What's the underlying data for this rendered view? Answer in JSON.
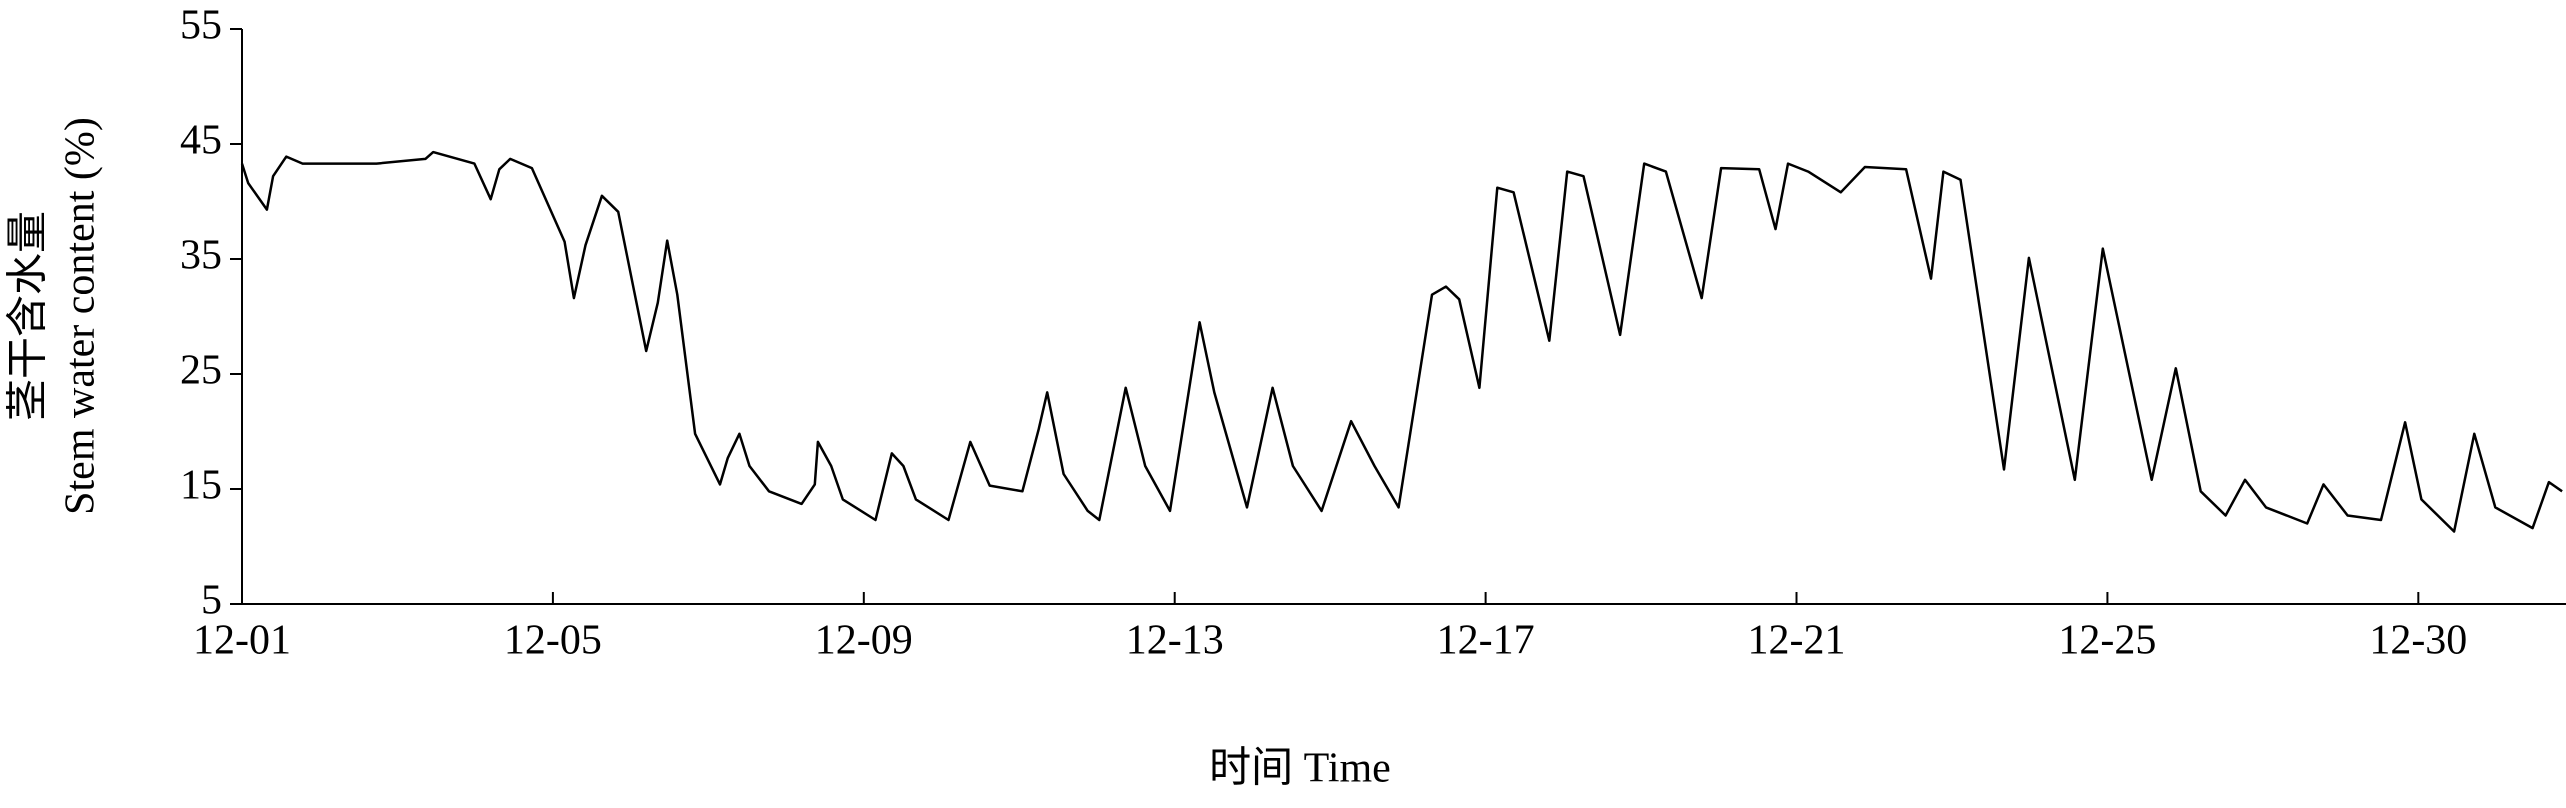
{
  "chart_data": {
    "type": "line",
    "ylabel": [
      "茎干含水量",
      "Stem water content (%)"
    ],
    "xlabel": "时间  Time",
    "xlim": [
      0,
      29.9
    ],
    "xticks": [
      {
        "value": 0,
        "label": "12-01"
      },
      {
        "value": 4,
        "label": "12-05"
      },
      {
        "value": 8,
        "label": "12-09"
      },
      {
        "value": 12,
        "label": "12-13"
      },
      {
        "value": 16,
        "label": "12-17"
      },
      {
        "value": 20,
        "label": "12-21"
      },
      {
        "value": 24,
        "label": "12-25"
      },
      {
        "value": 28,
        "label": "12-30"
      }
    ],
    "ylim": [
      5,
      55
    ],
    "yticks": [
      5,
      15,
      25,
      35,
      45,
      55
    ],
    "series": [
      {
        "color": "#000000",
        "x": [
          0,
          0.08,
          0.32,
          0.4,
          0.57,
          0.78,
          1.73,
          2.36,
          2.46,
          2.99,
          3.2,
          3.31,
          3.45,
          3.73,
          4.15,
          4.27,
          4.42,
          4.63,
          4.84,
          5.2,
          5.35,
          5.47,
          5.6,
          5.83,
          6.15,
          6.25,
          6.4,
          6.53,
          6.78,
          7.2,
          7.37,
          7.41,
          7.58,
          7.73,
          8.15,
          8.36,
          8.51,
          8.67,
          9.09,
          9.37,
          9.62,
          10.04,
          10.25,
          10.36,
          10.57,
          10.88,
          11.03,
          11.37,
          11.62,
          11.94,
          12.32,
          12.51,
          12.93,
          13.26,
          13.52,
          13.89,
          14.27,
          14.57,
          14.88,
          15.31,
          15.49,
          15.66,
          15.92,
          16.15,
          16.36,
          16.82,
          17.05,
          17.26,
          17.73,
          18.04,
          18.32,
          18.78,
          19.03,
          19.52,
          19.73,
          19.89,
          20.15,
          20.57,
          20.88,
          21.41,
          21.73,
          21.89,
          22.11,
          22.67,
          22.99,
          23.58,
          23.94,
          24.57,
          24.88,
          25.2,
          25.52,
          25.77,
          26.04,
          26.57,
          26.78,
          27.09,
          27.52,
          27.83,
          28.04,
          28.46,
          28.72,
          28.99,
          29.47,
          29.68,
          29.85
        ],
        "values": [
          43.3,
          41.6,
          39.3,
          42.2,
          43.9,
          43.3,
          43.3,
          43.7,
          44.3,
          43.3,
          40.2,
          42.8,
          43.7,
          42.9,
          36.5,
          31.6,
          36.2,
          40.5,
          39.1,
          27.0,
          31.2,
          36.6,
          31.9,
          19.8,
          15.4,
          17.7,
          19.8,
          17.0,
          14.8,
          13.7,
          15.4,
          19.1,
          17.0,
          14.1,
          12.3,
          18.1,
          17.0,
          14.1,
          12.3,
          19.1,
          15.3,
          14.8,
          20.2,
          23.4,
          16.3,
          13.1,
          12.3,
          23.8,
          17.0,
          13.1,
          29.5,
          23.4,
          13.4,
          23.8,
          17.0,
          13.1,
          20.9,
          17.0,
          13.4,
          31.9,
          32.6,
          31.5,
          23.8,
          41.2,
          40.8,
          27.9,
          42.6,
          42.2,
          28.4,
          43.3,
          42.6,
          31.6,
          42.9,
          42.8,
          37.6,
          43.3,
          42.6,
          40.8,
          43.0,
          42.8,
          33.3,
          42.6,
          41.9,
          16.7,
          35.1,
          15.8,
          35.9,
          15.8,
          25.5,
          14.8,
          12.7,
          15.8,
          13.4,
          12.0,
          15.4,
          12.7,
          12.3,
          20.8,
          14.1,
          11.3,
          19.8,
          13.4,
          11.6,
          15.6,
          14.8
        ]
      }
    ]
  }
}
